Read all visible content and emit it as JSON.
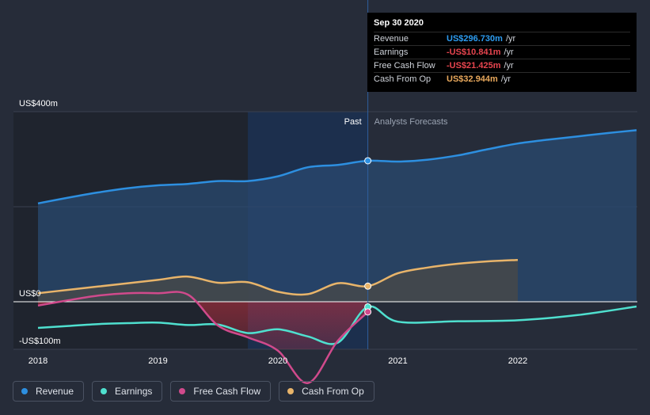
{
  "tooltip": {
    "date": "Sep 30 2020",
    "rows": [
      {
        "label": "Revenue",
        "value": "US$296.730m",
        "unit": "/yr",
        "color": "#2d9cf0"
      },
      {
        "label": "Earnings",
        "value": "-US$10.841m",
        "unit": "/yr",
        "color": "#e8454f"
      },
      {
        "label": "Free Cash Flow",
        "value": "-US$21.425m",
        "unit": "/yr",
        "color": "#e8454f"
      },
      {
        "label": "Cash From Op",
        "value": "US$32.944m",
        "unit": "/yr",
        "color": "#e8a85c"
      }
    ]
  },
  "legend": [
    {
      "label": "Revenue",
      "color": "#2d8fe0"
    },
    {
      "label": "Earnings",
      "color": "#4fe0cf"
    },
    {
      "label": "Free Cash Flow",
      "color": "#d04a8c"
    },
    {
      "label": "Cash From Op",
      "color": "#e8b46a"
    }
  ],
  "chart_data": {
    "type": "line",
    "y_ticks": [
      {
        "value": 400,
        "label": "US$400m"
      },
      {
        "value": 0,
        "label": "US$0"
      },
      {
        "value": -100,
        "label": "-US$100m"
      }
    ],
    "x_ticks": [
      {
        "value": 2018,
        "label": "2018"
      },
      {
        "value": 2019,
        "label": "2019"
      },
      {
        "value": 2020,
        "label": "2020"
      },
      {
        "value": 2021,
        "label": "2021"
      },
      {
        "value": 2022,
        "label": "2022"
      }
    ],
    "xlim": [
      2017.9,
      2022.99
    ],
    "ylim": [
      -100,
      400
    ],
    "past_label": "Past",
    "forecast_label": "Analysts Forecasts",
    "divider_x": 2020.75,
    "shade_start_x": 2019.75,
    "series": [
      {
        "name": "Revenue",
        "color": "#2d8fe0",
        "fill": true,
        "points": [
          [
            2018.0,
            207
          ],
          [
            2018.25,
            219
          ],
          [
            2018.5,
            230
          ],
          [
            2018.75,
            239
          ],
          [
            2019.0,
            245
          ],
          [
            2019.25,
            248
          ],
          [
            2019.5,
            254
          ],
          [
            2019.75,
            254
          ],
          [
            2020.0,
            264
          ],
          [
            2020.25,
            283
          ],
          [
            2020.5,
            288
          ],
          [
            2020.75,
            296.7
          ],
          [
            2021.0,
            295
          ],
          [
            2021.25,
            299
          ],
          [
            2021.5,
            308
          ],
          [
            2021.75,
            321
          ],
          [
            2022.0,
            333
          ],
          [
            2022.25,
            341
          ],
          [
            2022.5,
            348
          ],
          [
            2022.75,
            355
          ],
          [
            2022.99,
            361
          ]
        ]
      },
      {
        "name": "Cash From Op",
        "color": "#e8b46a",
        "fill": true,
        "points": [
          [
            2018.0,
            18
          ],
          [
            2018.25,
            25
          ],
          [
            2018.5,
            32
          ],
          [
            2018.75,
            39
          ],
          [
            2019.0,
            46
          ],
          [
            2019.25,
            53
          ],
          [
            2019.5,
            40
          ],
          [
            2019.75,
            41
          ],
          [
            2020.0,
            21
          ],
          [
            2020.25,
            16
          ],
          [
            2020.5,
            39
          ],
          [
            2020.75,
            32.9
          ],
          [
            2021.0,
            60
          ],
          [
            2021.25,
            72
          ],
          [
            2021.5,
            80
          ],
          [
            2021.75,
            85
          ],
          [
            2022.0,
            88
          ]
        ]
      },
      {
        "name": "Earnings",
        "color": "#4fe0cf",
        "fill": false,
        "points": [
          [
            2018.0,
            -55
          ],
          [
            2018.25,
            -51
          ],
          [
            2018.5,
            -47
          ],
          [
            2018.75,
            -45
          ],
          [
            2019.0,
            -44
          ],
          [
            2019.25,
            -49
          ],
          [
            2019.5,
            -48
          ],
          [
            2019.75,
            -66
          ],
          [
            2020.0,
            -58
          ],
          [
            2020.25,
            -73
          ],
          [
            2020.5,
            -86
          ],
          [
            2020.75,
            -10.8
          ],
          [
            2021.0,
            -42
          ],
          [
            2021.5,
            -41
          ],
          [
            2022.0,
            -39
          ],
          [
            2022.5,
            -28
          ],
          [
            2022.99,
            -10
          ]
        ]
      },
      {
        "name": "Free Cash Flow",
        "color": "#d04a8c",
        "fill": false,
        "points": [
          [
            2018.0,
            -8
          ],
          [
            2018.25,
            3
          ],
          [
            2018.5,
            13
          ],
          [
            2018.75,
            18
          ],
          [
            2019.0,
            18
          ],
          [
            2019.25,
            15
          ],
          [
            2019.5,
            -50
          ],
          [
            2019.75,
            -75
          ],
          [
            2020.0,
            -103
          ],
          [
            2020.25,
            -171
          ],
          [
            2020.5,
            -82
          ],
          [
            2020.75,
            -21.4
          ]
        ]
      }
    ]
  }
}
